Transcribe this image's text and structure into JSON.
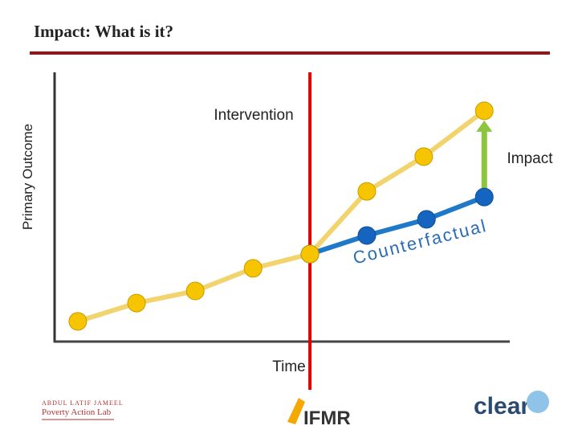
{
  "title": "Impact: What is it?",
  "chart_data": {
    "type": "line",
    "xlabel": "Time",
    "ylabel": "Primary Outcome",
    "xlim": [
      0,
      100
    ],
    "ylim": [
      0,
      100
    ],
    "series": [
      {
        "color": "#f2d46e",
        "marker_color": "#f7c400",
        "x": [
          5.1,
          18,
          30.9,
          43.6,
          56.1,
          68.6,
          81.1,
          94.4
        ],
        "values": [
          7.5,
          14.3,
          18.8,
          27.2,
          32.5,
          55.8,
          68.7,
          85.7
        ]
      },
      {
        "name": "Counterfactual",
        "color": "#1f78c8",
        "marker_color": "#1565c0",
        "x": [
          56.1,
          68.6,
          81.7,
          94.4
        ],
        "values": [
          32.5,
          39.4,
          45.4,
          53.7
        ]
      }
    ],
    "intervention": {
      "label": "Intervention",
      "x": 56.1,
      "color": "#e00000"
    },
    "impact": {
      "label": "Impact",
      "color": "#8cc63f"
    }
  },
  "logos": [
    "ABDUL LATIF JAMEEL",
    "Poverty Action Lab",
    "IFMR",
    "clear"
  ]
}
